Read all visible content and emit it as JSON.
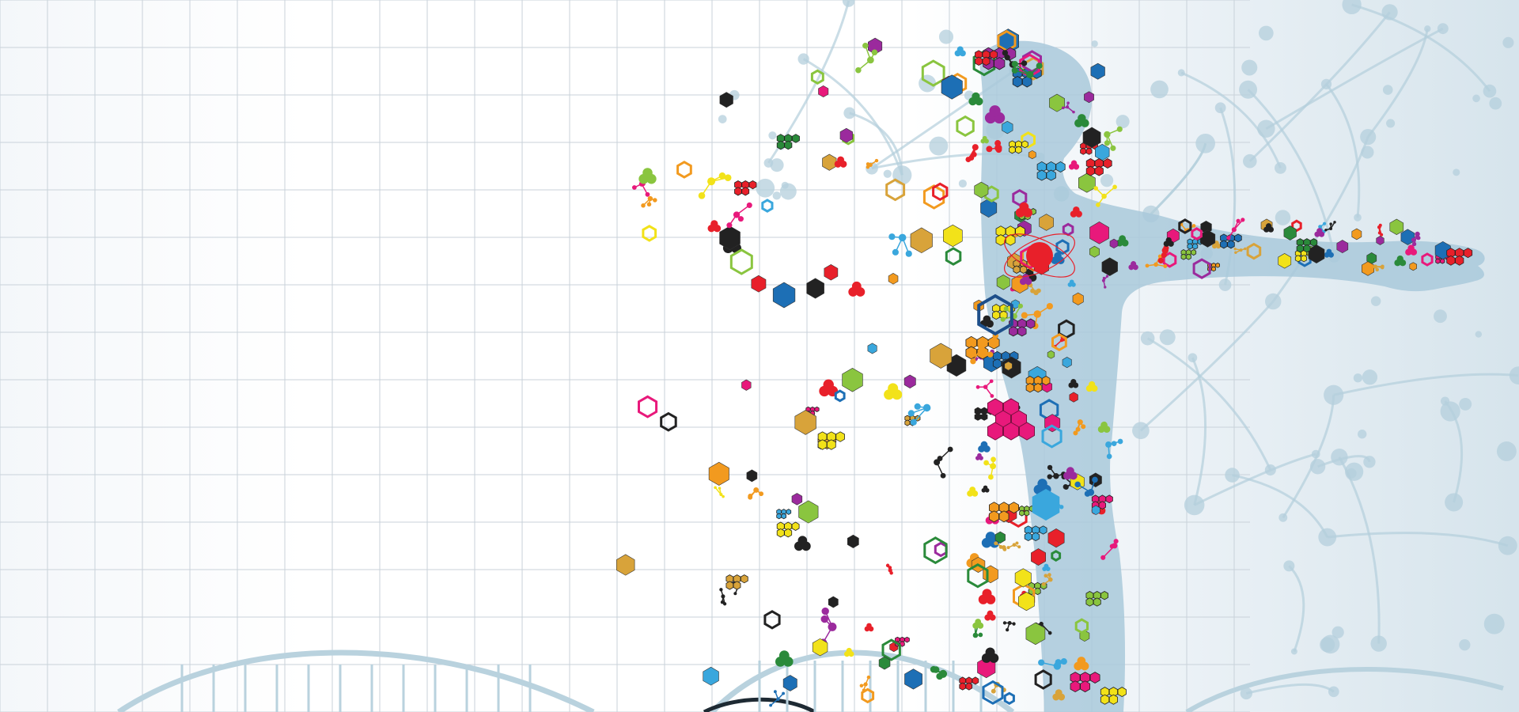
{
  "colors": {
    "background": "#ffffff",
    "grid_line": "#c9d2da",
    "body_silhouette": "#a9c9da",
    "network": "#b4cfdc",
    "dna_strand": "#b9d2de",
    "dna_strand_dark": "#1e2a33",
    "heart": "#e8202a",
    "particle_palette": [
      "#f2e219",
      "#8ac53f",
      "#9b2a9d",
      "#e8197b",
      "#1d6fb5",
      "#f29a1f",
      "#3aa7dd",
      "#e8202a",
      "#d8a33a",
      "#2a8a3a",
      "#222222"
    ]
  },
  "scene": {
    "illustration": "human-body-molecular-biology",
    "icons": [
      "human-body-icon",
      "heart-icon",
      "atom-orbit-icon",
      "hexagon-molecule-icon",
      "dna-helix-icon",
      "neural-network-icon",
      "honeycomb-molecule-icon"
    ]
  }
}
